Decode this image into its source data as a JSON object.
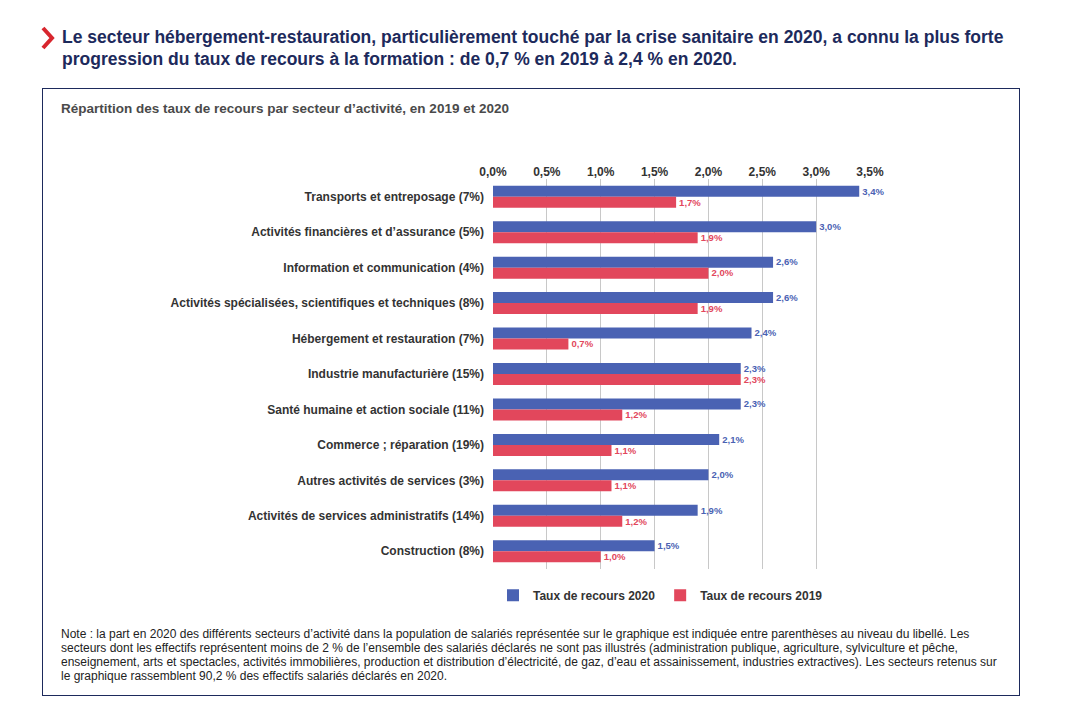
{
  "heading": "Le secteur hébergement-restauration, particulièrement touché par la crise sanitaire en 2020, a connu la plus forte progression du taux de recours à la formation : de 0,7 % en 2019 à 2,4 % en 2020.",
  "note": "Note : la part en 2020 des différents secteurs d’activité dans la population de salariés représentée sur le graphique est indiquée entre parenthèses au niveau du libellé. Les secteurs dont les effectifs représentent moins de 2 % de l’ensemble des salariés déclarés ne sont pas illustrés (administration publique, agriculture, sylviculture et pêche, enseignement, arts et spectacles, activités immobilières, production et distribution d’électricité, de gaz, d’eau et assainissement, industries extractives). Les secteurs retenus sur le graphique rassemblent 90,2 % des effectifs salariés déclarés en 2020.",
  "chart_data": {
    "type": "bar",
    "title": "Répartition des taux de recours par secteur d’activité, en 2019 et 2020",
    "orientation": "horizontal",
    "grid": true,
    "legend": "bottom",
    "data_labels": true,
    "categories": [
      "Transports et entreposage (7%)",
      "Activités financières et d’assurance (5%)",
      "Information et communication (4%)",
      "Activités spécialisées, scientifiques et techniques (8%)",
      "Hébergement et restauration (7%)",
      "Industrie manufacturière (15%)",
      "Santé humaine et action sociale (11%)",
      "Commerce ; réparation (19%)",
      "Autres activités de services (3%)",
      "Activités de services administratifs (14%)",
      "Construction (8%)"
    ],
    "series": [
      {
        "name": "Taux de recours 2020",
        "color": "#4a62b3",
        "values": [
          3.4,
          3.0,
          2.6,
          2.6,
          2.4,
          2.3,
          2.3,
          2.1,
          2.0,
          1.9,
          1.5
        ],
        "value_labels": [
          "3,4%",
          "3,0%",
          "2,6%",
          "2,6%",
          "2,4%",
          "2,3%",
          "2,3%",
          "2,1%",
          "2,0%",
          "1,9%",
          "1,5%"
        ]
      },
      {
        "name": "Taux de recours 2019",
        "color": "#e2475c",
        "values": [
          1.7,
          1.9,
          2.0,
          1.9,
          0.7,
          2.3,
          1.2,
          1.1,
          1.1,
          1.2,
          1.0
        ],
        "value_labels": [
          "1,7%",
          "1,9%",
          "2,0%",
          "1,9%",
          "0,7%",
          "2,3%",
          "1,2%",
          "1,1%",
          "1,1%",
          "1,2%",
          "1,0%"
        ]
      }
    ],
    "xlim": [
      0,
      3.5
    ],
    "xticks": [
      {
        "value": 0,
        "label": "0,0%"
      },
      {
        "value": 0.5,
        "label": "0,5%"
      },
      {
        "value": 1,
        "label": "1,0%"
      },
      {
        "value": 1.5,
        "label": "1,5%"
      },
      {
        "value": 2,
        "label": "2,0%"
      },
      {
        "value": 2.5,
        "label": "2,5%"
      },
      {
        "value": 3,
        "label": "3,0%"
      },
      {
        "value": 3.5,
        "label": "3,5%"
      }
    ]
  }
}
